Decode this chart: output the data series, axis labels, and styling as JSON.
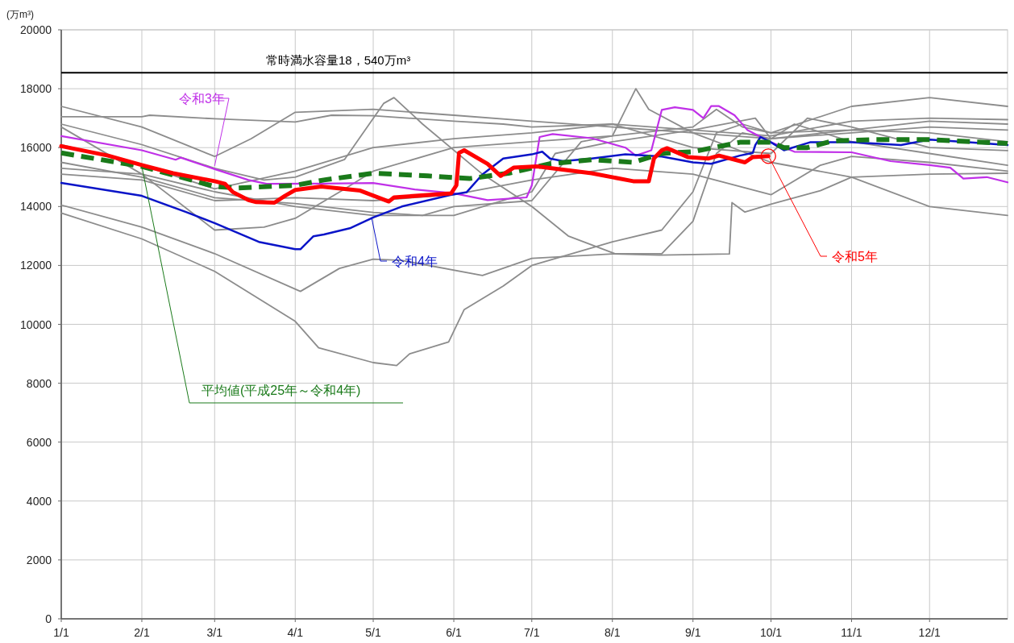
{
  "chart_data": {
    "type": "line",
    "ylabel": "(万m³)",
    "xlim": [
      "--01-01",
      "--12-31"
    ],
    "xticks": [
      {
        "value": "--01-01",
        "label": "1/1"
      },
      {
        "value": "--02-01",
        "label": "2/1"
      },
      {
        "value": "--03-01",
        "label": "3/1"
      },
      {
        "value": "--04-01",
        "label": "4/1"
      },
      {
        "value": "--05-01",
        "label": "5/1"
      },
      {
        "value": "--06-01",
        "label": "6/1"
      },
      {
        "value": "--07-01",
        "label": "7/1"
      },
      {
        "value": "--08-01",
        "label": "8/1"
      },
      {
        "value": "--09-01",
        "label": "9/1"
      },
      {
        "value": "--10-01",
        "label": "10/1"
      },
      {
        "value": "--11-01",
        "label": "11/1"
      },
      {
        "value": "--12-01",
        "label": "12/1"
      }
    ],
    "ylim": [
      0,
      20000
    ],
    "yticks": [
      0,
      2000,
      4000,
      6000,
      8000,
      10000,
      12000,
      14000,
      16000,
      18000,
      20000
    ],
    "grid": true,
    "ref_lines": [
      {
        "axis": "y",
        "value": 18540,
        "label": "常時満水容量18，540万m³",
        "color": "#000000"
      }
    ],
    "series": [
      {
        "color": "#8c8c8c",
        "x": [
          "--01-01",
          "--02-01",
          "--02-04",
          "--03-01",
          "--04-01",
          "--04-15",
          "--05-01",
          "--06-01",
          "--06-20",
          "--07-01",
          "--08-01",
          "--09-01",
          "--10-01",
          "--11-01",
          "--12-01",
          "--12-31"
        ],
        "values": [
          17050,
          17050,
          17100,
          16980,
          16870,
          17100,
          17080,
          16900,
          16800,
          16700,
          16800,
          16600,
          16400,
          16900,
          17000,
          16950
        ]
      },
      {
        "color": "#8c8c8c",
        "x": [
          "--01-01",
          "--02-01",
          "--03-01",
          "--03-15",
          "--04-01",
          "--05-01",
          "--06-01",
          "--07-01",
          "--08-01",
          "--09-01",
          "--10-01",
          "--11-01",
          "--12-01",
          "--12-31"
        ],
        "values": [
          17400,
          16700,
          15700,
          16300,
          17200,
          17300,
          17100,
          16900,
          16700,
          16500,
          16300,
          16500,
          16700,
          16600
        ]
      },
      {
        "color": "#8c8c8c",
        "x": [
          "--01-01",
          "--02-01",
          "--03-01",
          "--03-20",
          "--04-01",
          "--04-20",
          "--05-05",
          "--05-09",
          "--05-20",
          "--06-12",
          "--07-01",
          "--07-15",
          "--08-02",
          "--08-20",
          "--09-01",
          "--09-10",
          "--09-20",
          "--10-01",
          "--11-01",
          "--12-01",
          "--12-31"
        ],
        "values": [
          16800,
          16100,
          15300,
          14900,
          15000,
          15600,
          17500,
          17700,
          16800,
          15100,
          14000,
          13000,
          12400,
          12400,
          13500,
          15800,
          16500,
          16300,
          16600,
          16500,
          16200
        ]
      },
      {
        "color": "#8c8c8c",
        "x": [
          "--01-01",
          "--02-01",
          "--03-01",
          "--04-03",
          "--04-18",
          "--05-01",
          "--05-12",
          "--06-12",
          "--07-01",
          "--08-01",
          "--08-19",
          "--09-15",
          "--09-16",
          "--09-21",
          "--10-01",
          "--10-20",
          "--11-01",
          "--12-01",
          "--12-31"
        ],
        "values": [
          14050,
          13300,
          12400,
          11120,
          11900,
          12210,
          12170,
          11660,
          12240,
          12390,
          12350,
          12390,
          14130,
          13810,
          14080,
          14540,
          15000,
          15100,
          15130
        ]
      },
      {
        "color": "#8c8c8c",
        "x": [
          "--01-01",
          "--02-01",
          "--03-01",
          "--04-01",
          "--04-10",
          "--05-01",
          "--05-10",
          "--05-15",
          "--05-30",
          "--06-05",
          "--06-20",
          "--07-01",
          "--08-01",
          "--08-20",
          "--09-01",
          "--09-10",
          "--09-20",
          "--10-01",
          "--11-01",
          "--12-01",
          "--12-31"
        ],
        "values": [
          13780,
          12900,
          11800,
          10100,
          9200,
          8700,
          8600,
          9000,
          9400,
          10500,
          11300,
          12000,
          12800,
          13200,
          14500,
          16500,
          16800,
          16500,
          16600,
          16900,
          16800
        ]
      },
      {
        "color": "#8c8c8c",
        "x": [
          "--01-01",
          "--02-01",
          "--03-01",
          "--03-20",
          "--04-01",
          "--04-20",
          "--05-01",
          "--06-01",
          "--07-01",
          "--08-01",
          "--09-01",
          "--09-10",
          "--09-20",
          "--10-01",
          "--11-01",
          "--12-01",
          "--12-31"
        ],
        "values": [
          16700,
          15100,
          13200,
          13300,
          13600,
          14600,
          15200,
          16000,
          16200,
          16400,
          16700,
          17300,
          16700,
          16500,
          17400,
          17700,
          17400
        ]
      },
      {
        "color": "#8c8c8c",
        "x": [
          "--01-01",
          "--02-01",
          "--03-01",
          "--04-01",
          "--05-01",
          "--05-20",
          "--06-01",
          "--07-01",
          "--07-20",
          "--08-01",
          "--08-10",
          "--08-15",
          "--09-01",
          "--10-01",
          "--11-01",
          "--12-01",
          "--12-31"
        ],
        "values": [
          15500,
          15000,
          14300,
          14100,
          13800,
          13700,
          14000,
          14200,
          16200,
          16400,
          18000,
          17300,
          16500,
          15500,
          15000,
          14000,
          13700
        ]
      },
      {
        "color": "#8c8c8c",
        "x": [
          "--01-01",
          "--02-01",
          "--03-01",
          "--04-01",
          "--05-01",
          "--06-01",
          "--07-01",
          "--07-10",
          "--08-01",
          "--09-01",
          "--09-25",
          "--10-01",
          "--10-10",
          "--11-01",
          "--12-01",
          "--12-31"
        ],
        "values": [
          15300,
          15100,
          14500,
          14000,
          13700,
          13700,
          14500,
          15800,
          16200,
          16600,
          17000,
          16300,
          16800,
          16200,
          15800,
          15400
        ]
      },
      {
        "color": "#8c8c8c",
        "x": [
          "--01-01",
          "--02-01",
          "--03-01",
          "--04-01",
          "--05-01",
          "--06-01",
          "--07-01",
          "--08-01",
          "--09-01",
          "--10-01",
          "--10-20",
          "--11-01",
          "--12-01",
          "--12-31"
        ],
        "values": [
          15100,
          14900,
          14200,
          14300,
          14200,
          14400,
          14900,
          15300,
          15100,
          14400,
          15400,
          15700,
          15500,
          15200
        ]
      },
      {
        "color": "#8c8c8c",
        "x": [
          "--01-01",
          "--02-01",
          "--03-01",
          "--04-01",
          "--05-01",
          "--06-01",
          "--07-01",
          "--08-01",
          "--09-01",
          "--10-01",
          "--10-15",
          "--11-01",
          "--12-01",
          "--12-31"
        ],
        "values": [
          16100,
          15400,
          14600,
          15200,
          16000,
          16300,
          16500,
          16800,
          16000,
          15800,
          17000,
          16700,
          16000,
          15900
        ]
      },
      {
        "name": "令和3年",
        "color": "#c030e8",
        "x": [
          "--01-01",
          "--02-01",
          "--02-14",
          "--02-16",
          "--03-01",
          "--03-14",
          "--03-21",
          "--04-12",
          "--05-01",
          "--05-17",
          "--06-01",
          "--06-14",
          "--06-29",
          "--07-01",
          "--07-04",
          "--07-09",
          "--07-24",
          "--08-06",
          "--08-10",
          "--08-16",
          "--08-20",
          "--08-25",
          "--09-01",
          "--09-05",
          "--09-08",
          "--09-11",
          "--09-17",
          "--09-22",
          "--10-01",
          "--10-10",
          "--11-01",
          "--11-16",
          "--12-01",
          "--12-09",
          "--12-14",
          "--12-23",
          "--12-31"
        ],
        "values": [
          16390,
          15910,
          15590,
          15660,
          15270,
          14900,
          14770,
          14780,
          14800,
          14580,
          14450,
          14220,
          14310,
          14720,
          16360,
          16460,
          16320,
          16000,
          15730,
          15910,
          17280,
          17370,
          17280,
          17000,
          17410,
          17410,
          17100,
          16590,
          16180,
          15860,
          15840,
          15540,
          15410,
          15320,
          14950,
          15000,
          14820
        ]
      },
      {
        "name": "令和4年",
        "color": "#0a14c8",
        "x": [
          "--01-01",
          "--02-01",
          "--02-18",
          "--03-01",
          "--03-18",
          "--04-01",
          "--04-03",
          "--04-08",
          "--04-12",
          "--04-22",
          "--05-01",
          "--05-12",
          "--05-31",
          "--06-06",
          "--06-12",
          "--06-20",
          "--07-01",
          "--07-05",
          "--07-08",
          "--07-13",
          "--07-24",
          "--08-06",
          "--08-20",
          "--09-01",
          "--09-08",
          "--09-19",
          "--09-24",
          "--09-25",
          "--09-27",
          "--10-01",
          "--10-06",
          "--10-16",
          "--11-01",
          "--11-20",
          "--12-01",
          "--12-16",
          "--12-31"
        ],
        "values": [
          14800,
          14360,
          13810,
          13440,
          12800,
          12550,
          12550,
          12990,
          13050,
          13260,
          13630,
          14000,
          14400,
          14490,
          15090,
          15630,
          15770,
          15860,
          15630,
          15540,
          15630,
          15770,
          15700,
          15500,
          15450,
          15730,
          15820,
          16090,
          16360,
          16180,
          15910,
          16180,
          16180,
          16090,
          16270,
          16180,
          16090
        ]
      },
      {
        "name": "平均値(平成25年～令和4年)",
        "color": "#1a7a1a",
        "line_style": "dashed",
        "x": [
          "--01-01",
          "--02-01",
          "--03-01",
          "--03-10",
          "--04-01",
          "--04-12",
          "--05-01",
          "--05-22",
          "--06-07",
          "--06-22",
          "--07-08",
          "--07-24",
          "--08-09",
          "--08-20",
          "--09-01",
          "--09-19",
          "--10-01",
          "--10-06",
          "--10-15",
          "--10-25",
          "--11-10",
          "--12-01",
          "--12-31"
        ],
        "values": [
          15820,
          15360,
          14680,
          14630,
          14720,
          14900,
          15130,
          15040,
          14950,
          15130,
          15450,
          15590,
          15500,
          15800,
          15860,
          16180,
          16180,
          16000,
          16000,
          16230,
          16270,
          16270,
          16140
        ]
      },
      {
        "name": "令和5年",
        "color": "#ff0000",
        "x": [
          "--01-01",
          "--01-19",
          "--02-01",
          "--02-13",
          "--03-01",
          "--03-05",
          "--03-08",
          "--03-14",
          "--03-17",
          "--03-24",
          "--03-28",
          "--04-01",
          "--04-11",
          "--04-26",
          "--05-07",
          "--05-09",
          "--05-31",
          "--06-02",
          "--06-03",
          "--06-05",
          "--06-14",
          "--06-19",
          "--06-24",
          "--07-03",
          "--07-24",
          "--08-09",
          "--08-15",
          "--08-17",
          "--08-20",
          "--08-22",
          "--08-30",
          "--09-07",
          "--09-11",
          "--09-21",
          "--09-24",
          "--09-30"
        ],
        "values": [
          16050,
          15730,
          15410,
          15130,
          14860,
          14770,
          14490,
          14220,
          14150,
          14130,
          14360,
          14560,
          14680,
          14540,
          14170,
          14310,
          14450,
          14720,
          15820,
          15910,
          15450,
          15040,
          15320,
          15360,
          15130,
          14860,
          14860,
          15640,
          15910,
          15980,
          15680,
          15630,
          15730,
          15500,
          15680,
          15710
        ]
      }
    ]
  }
}
